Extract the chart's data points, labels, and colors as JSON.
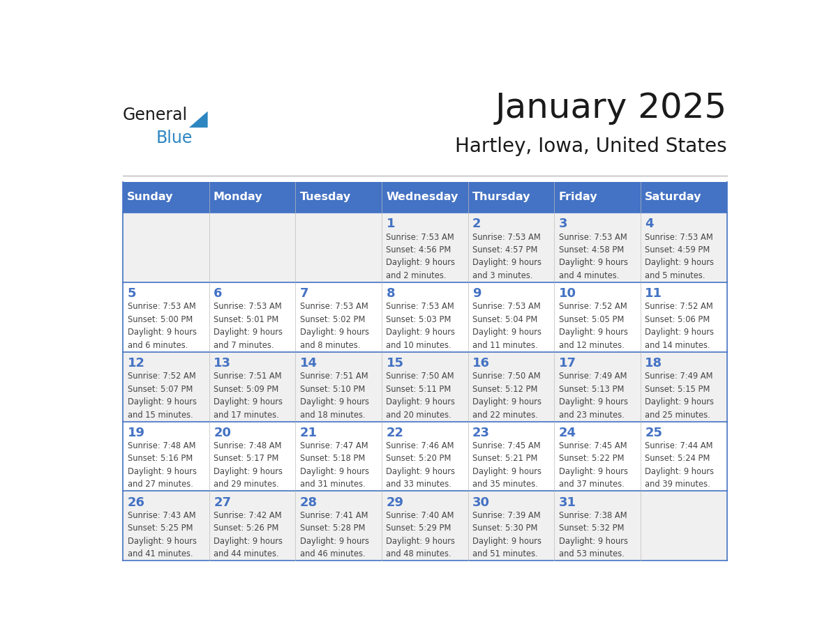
{
  "title": "January 2025",
  "subtitle": "Hartley, Iowa, United States",
  "days_of_week": [
    "Sunday",
    "Monday",
    "Tuesday",
    "Wednesday",
    "Thursday",
    "Friday",
    "Saturday"
  ],
  "header_bg": "#4472C4",
  "header_text_color": "#FFFFFF",
  "cell_bg_odd": "#F0F0F0",
  "cell_bg_even": "#FFFFFF",
  "line_color": "#4472C4",
  "title_color": "#1a1a1a",
  "subtitle_color": "#1a1a1a",
  "day_number_color": "#4472C4",
  "cell_text_color": "#444444",
  "logo_text_color": "#1a1a1a",
  "logo_blue_color": "#2E86C1",
  "sep_line_color": "#AAAAAA",
  "calendar": [
    [
      null,
      null,
      null,
      {
        "day": 1,
        "sunrise": "7:53 AM",
        "sunset": "4:56 PM",
        "daylight": "9 hours and 2 minutes."
      },
      {
        "day": 2,
        "sunrise": "7:53 AM",
        "sunset": "4:57 PM",
        "daylight": "9 hours and 3 minutes."
      },
      {
        "day": 3,
        "sunrise": "7:53 AM",
        "sunset": "4:58 PM",
        "daylight": "9 hours and 4 minutes."
      },
      {
        "day": 4,
        "sunrise": "7:53 AM",
        "sunset": "4:59 PM",
        "daylight": "9 hours and 5 minutes."
      }
    ],
    [
      {
        "day": 5,
        "sunrise": "7:53 AM",
        "sunset": "5:00 PM",
        "daylight": "9 hours and 6 minutes."
      },
      {
        "day": 6,
        "sunrise": "7:53 AM",
        "sunset": "5:01 PM",
        "daylight": "9 hours and 7 minutes."
      },
      {
        "day": 7,
        "sunrise": "7:53 AM",
        "sunset": "5:02 PM",
        "daylight": "9 hours and 8 minutes."
      },
      {
        "day": 8,
        "sunrise": "7:53 AM",
        "sunset": "5:03 PM",
        "daylight": "9 hours and 10 minutes."
      },
      {
        "day": 9,
        "sunrise": "7:53 AM",
        "sunset": "5:04 PM",
        "daylight": "9 hours and 11 minutes."
      },
      {
        "day": 10,
        "sunrise": "7:52 AM",
        "sunset": "5:05 PM",
        "daylight": "9 hours and 12 minutes."
      },
      {
        "day": 11,
        "sunrise": "7:52 AM",
        "sunset": "5:06 PM",
        "daylight": "9 hours and 14 minutes."
      }
    ],
    [
      {
        "day": 12,
        "sunrise": "7:52 AM",
        "sunset": "5:07 PM",
        "daylight": "9 hours and 15 minutes."
      },
      {
        "day": 13,
        "sunrise": "7:51 AM",
        "sunset": "5:09 PM",
        "daylight": "9 hours and 17 minutes."
      },
      {
        "day": 14,
        "sunrise": "7:51 AM",
        "sunset": "5:10 PM",
        "daylight": "9 hours and 18 minutes."
      },
      {
        "day": 15,
        "sunrise": "7:50 AM",
        "sunset": "5:11 PM",
        "daylight": "9 hours and 20 minutes."
      },
      {
        "day": 16,
        "sunrise": "7:50 AM",
        "sunset": "5:12 PM",
        "daylight": "9 hours and 22 minutes."
      },
      {
        "day": 17,
        "sunrise": "7:49 AM",
        "sunset": "5:13 PM",
        "daylight": "9 hours and 23 minutes."
      },
      {
        "day": 18,
        "sunrise": "7:49 AM",
        "sunset": "5:15 PM",
        "daylight": "9 hours and 25 minutes."
      }
    ],
    [
      {
        "day": 19,
        "sunrise": "7:48 AM",
        "sunset": "5:16 PM",
        "daylight": "9 hours and 27 minutes."
      },
      {
        "day": 20,
        "sunrise": "7:48 AM",
        "sunset": "5:17 PM",
        "daylight": "9 hours and 29 minutes."
      },
      {
        "day": 21,
        "sunrise": "7:47 AM",
        "sunset": "5:18 PM",
        "daylight": "9 hours and 31 minutes."
      },
      {
        "day": 22,
        "sunrise": "7:46 AM",
        "sunset": "5:20 PM",
        "daylight": "9 hours and 33 minutes."
      },
      {
        "day": 23,
        "sunrise": "7:45 AM",
        "sunset": "5:21 PM",
        "daylight": "9 hours and 35 minutes."
      },
      {
        "day": 24,
        "sunrise": "7:45 AM",
        "sunset": "5:22 PM",
        "daylight": "9 hours and 37 minutes."
      },
      {
        "day": 25,
        "sunrise": "7:44 AM",
        "sunset": "5:24 PM",
        "daylight": "9 hours and 39 minutes."
      }
    ],
    [
      {
        "day": 26,
        "sunrise": "7:43 AM",
        "sunset": "5:25 PM",
        "daylight": "9 hours and 41 minutes."
      },
      {
        "day": 27,
        "sunrise": "7:42 AM",
        "sunset": "5:26 PM",
        "daylight": "9 hours and 44 minutes."
      },
      {
        "day": 28,
        "sunrise": "7:41 AM",
        "sunset": "5:28 PM",
        "daylight": "9 hours and 46 minutes."
      },
      {
        "day": 29,
        "sunrise": "7:40 AM",
        "sunset": "5:29 PM",
        "daylight": "9 hours and 48 minutes."
      },
      {
        "day": 30,
        "sunrise": "7:39 AM",
        "sunset": "5:30 PM",
        "daylight": "9 hours and 51 minutes."
      },
      {
        "day": 31,
        "sunrise": "7:38 AM",
        "sunset": "5:32 PM",
        "daylight": "9 hours and 53 minutes."
      },
      null
    ]
  ]
}
